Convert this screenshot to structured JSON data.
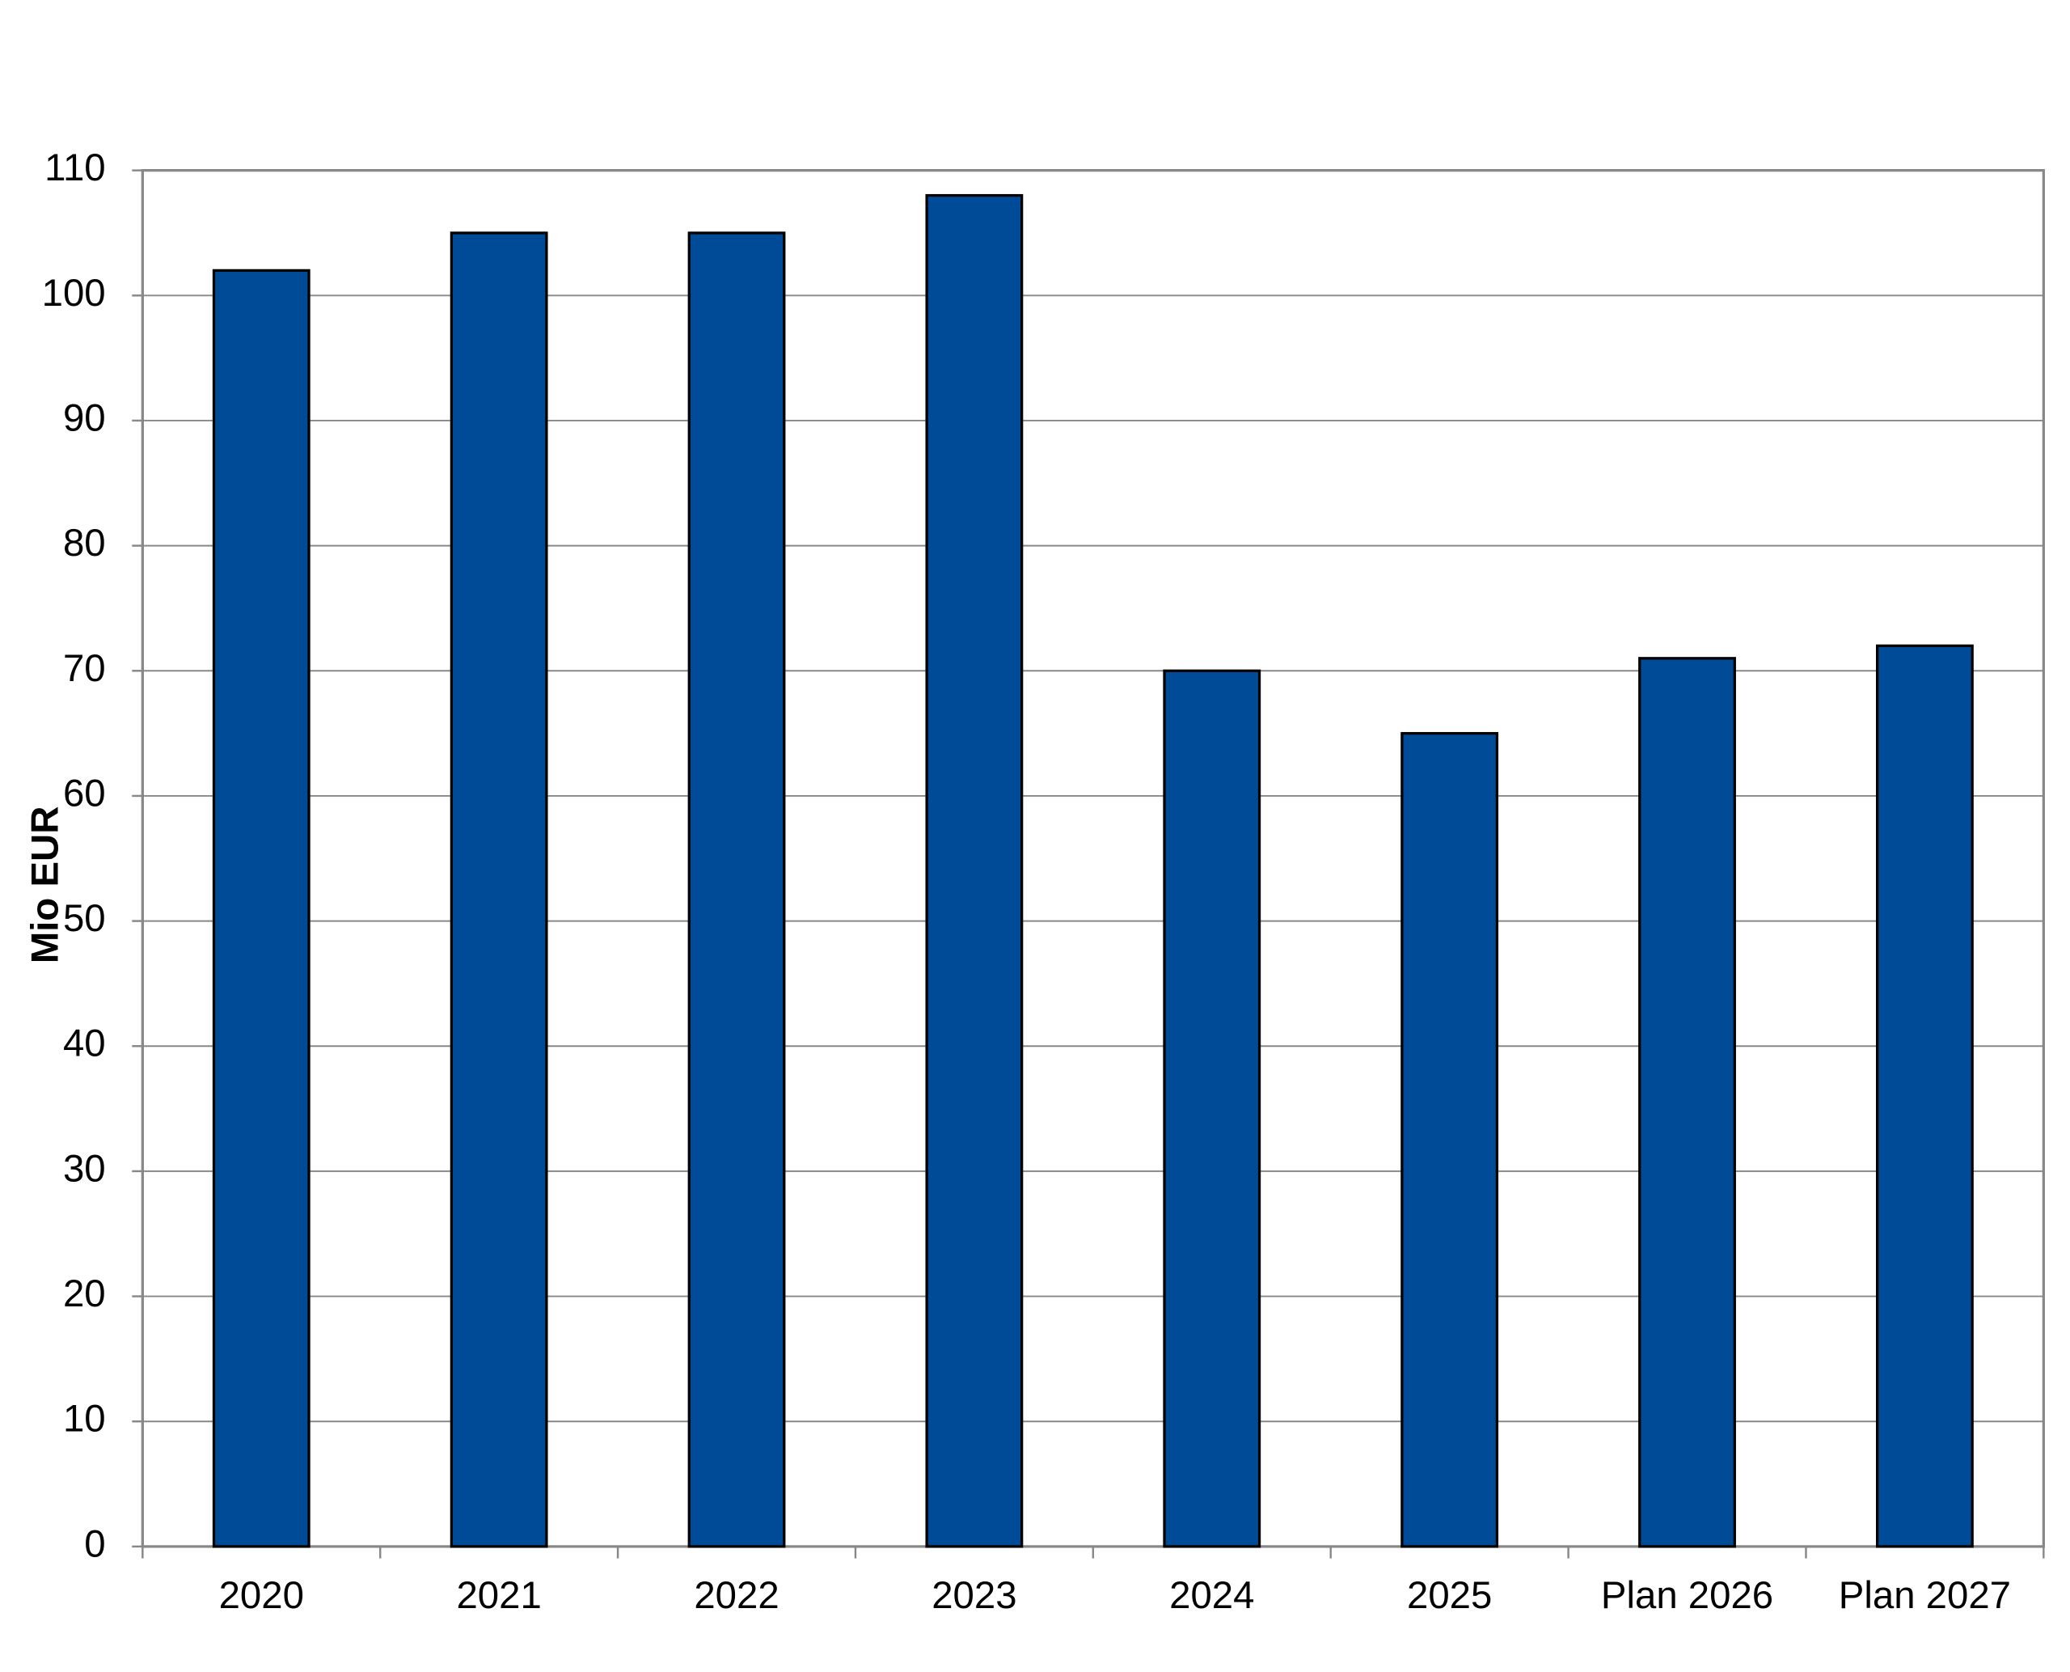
{
  "chart_data": {
    "type": "bar",
    "y_label": "Mio EUR",
    "categories": [
      "2020",
      "2021",
      "2022",
      "2023",
      "2024",
      "2025",
      "Plan 2026",
      "Plan 2027"
    ],
    "values": [
      102,
      105,
      105,
      108,
      70,
      65,
      71,
      72
    ],
    "color": "#004b98",
    "ylim": [
      0,
      110
    ],
    "yticks": [
      0,
      10,
      20,
      30,
      40,
      50,
      60,
      70,
      80,
      90,
      100,
      110
    ],
    "grid": true
  }
}
